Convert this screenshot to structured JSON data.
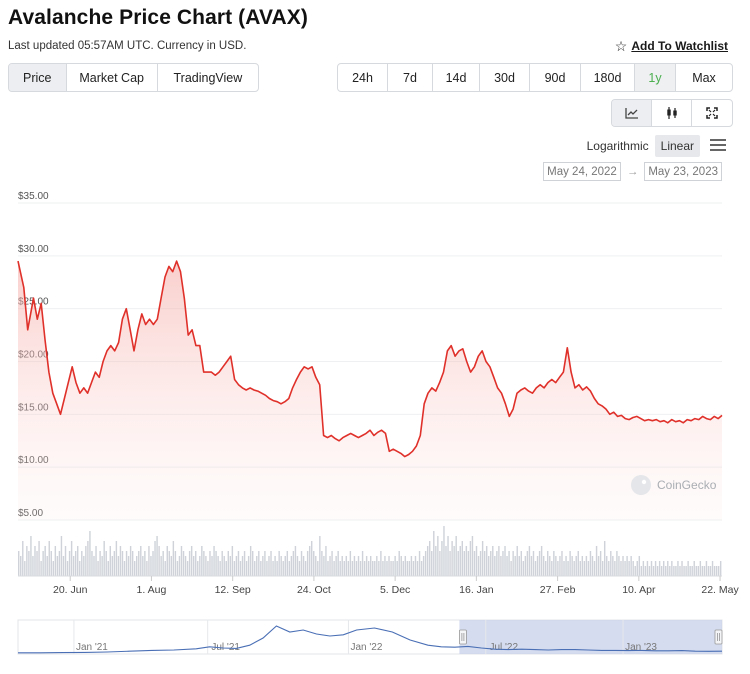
{
  "header": {
    "title": "Avalanche Price Chart (AVAX)",
    "subtitle": "Last updated 05:57AM UTC. Currency in USD.",
    "watchlist_label": "Add To Watchlist"
  },
  "tabs_left": [
    {
      "label": "Price",
      "active": true
    },
    {
      "label": "Market Cap",
      "active": false
    },
    {
      "label": "TradingView",
      "active": false
    }
  ],
  "tabs_range": [
    {
      "label": "24h",
      "active": false
    },
    {
      "label": "7d",
      "active": false
    },
    {
      "label": "14d",
      "active": false
    },
    {
      "label": "30d",
      "active": false
    },
    {
      "label": "90d",
      "active": false
    },
    {
      "label": "180d",
      "active": false
    },
    {
      "label": "1y",
      "active": true
    },
    {
      "label": "Max",
      "active": false
    }
  ],
  "chart_types": [
    {
      "icon": "line-chart-icon",
      "active": true
    },
    {
      "icon": "candlestick-icon",
      "active": false
    },
    {
      "icon": "fullscreen-icon",
      "active": false
    }
  ],
  "scale": {
    "logarithmic": "Logarithmic",
    "linear": "Linear",
    "active": "Linear"
  },
  "date_range": {
    "from": "May 24, 2022",
    "arrow": "→",
    "to": "May 23, 2023"
  },
  "watermark": "CoinGecko",
  "colors": {
    "line": "#e0302a",
    "volume": "#cfd3d9",
    "navigator_line": "#4a6fb5",
    "navigator_selection": "#c7d0ea"
  },
  "chart_data": {
    "type": "area",
    "ylim": [
      5,
      35
    ],
    "y_ticks": [
      "$35.00",
      "$30.00",
      "$25.00",
      "$20.00",
      "$15.00",
      "$10.00",
      "$5.00"
    ],
    "y_tick_values": [
      35,
      30,
      25,
      20,
      15,
      10,
      5
    ],
    "x_ticks": [
      "20. Jun",
      "1. Aug",
      "12. Sep",
      "24. Oct",
      "5. Dec",
      "16. Jan",
      "27. Feb",
      "10. Apr",
      "22. May"
    ],
    "x_tick_days": [
      27,
      69,
      111,
      153,
      195,
      237,
      279,
      321,
      363
    ],
    "series": [
      {
        "points": [
          [
            0,
            29.5
          ],
          [
            3,
            27
          ],
          [
            5,
            23
          ],
          [
            8,
            26
          ],
          [
            10,
            24
          ],
          [
            12,
            25.5
          ],
          [
            14,
            22
          ],
          [
            16,
            19
          ],
          [
            18,
            17
          ],
          [
            20,
            16
          ],
          [
            22,
            15
          ],
          [
            24,
            16.5
          ],
          [
            26,
            18
          ],
          [
            28,
            19.5
          ],
          [
            30,
            18
          ],
          [
            32,
            17
          ],
          [
            34,
            17.5
          ],
          [
            36,
            17
          ],
          [
            38,
            18
          ],
          [
            40,
            19
          ],
          [
            42,
            18.5
          ],
          [
            44,
            20
          ],
          [
            46,
            21
          ],
          [
            48,
            21.5
          ],
          [
            50,
            21
          ],
          [
            52,
            21.8
          ],
          [
            54,
            24
          ],
          [
            56,
            25
          ],
          [
            58,
            23
          ],
          [
            60,
            21
          ],
          [
            62,
            23
          ],
          [
            64,
            24.5
          ],
          [
            66,
            23.5
          ],
          [
            68,
            24
          ],
          [
            70,
            23.5
          ],
          [
            72,
            24
          ],
          [
            74,
            26
          ],
          [
            76,
            28
          ],
          [
            78,
            29
          ],
          [
            80,
            28.5
          ],
          [
            82,
            29.5
          ],
          [
            84,
            28.5
          ],
          [
            86,
            26
          ],
          [
            88,
            22.5
          ],
          [
            90,
            23
          ],
          [
            92,
            21.5
          ],
          [
            94,
            21.5
          ],
          [
            96,
            19
          ],
          [
            98,
            19
          ],
          [
            100,
            19
          ],
          [
            102,
            18.7
          ],
          [
            104,
            19
          ],
          [
            106,
            19.5
          ],
          [
            108,
            20
          ],
          [
            110,
            20.5
          ],
          [
            112,
            18.3
          ],
          [
            114,
            17.8
          ],
          [
            116,
            17.5
          ],
          [
            118,
            17.3
          ],
          [
            120,
            17.5
          ],
          [
            122,
            17.3
          ],
          [
            124,
            17.2
          ],
          [
            126,
            17
          ],
          [
            128,
            16.8
          ],
          [
            130,
            16.5
          ],
          [
            132,
            16.3
          ],
          [
            134,
            16.2
          ],
          [
            136,
            16
          ],
          [
            138,
            16.2
          ],
          [
            140,
            16.5
          ],
          [
            142,
            17.5
          ],
          [
            144,
            18.3
          ],
          [
            146,
            19
          ],
          [
            148,
            19.5
          ],
          [
            150,
            19.3
          ],
          [
            152,
            19.5
          ],
          [
            154,
            18.5
          ],
          [
            156,
            17.8
          ],
          [
            158,
            13
          ],
          [
            160,
            12.8
          ],
          [
            162,
            13
          ],
          [
            164,
            12.7
          ],
          [
            166,
            12.5
          ],
          [
            168,
            12.8
          ],
          [
            170,
            13
          ],
          [
            172,
            13.2
          ],
          [
            174,
            13
          ],
          [
            176,
            12.8
          ],
          [
            178,
            13
          ],
          [
            180,
            13.2
          ],
          [
            182,
            13.5
          ],
          [
            184,
            13
          ],
          [
            186,
            13.3
          ],
          [
            188,
            13.5
          ],
          [
            190,
            13.2
          ],
          [
            192,
            11.5
          ],
          [
            194,
            11.7
          ],
          [
            196,
            11.5
          ],
          [
            198,
            11.3
          ],
          [
            200,
            11
          ],
          [
            202,
            11.2
          ],
          [
            204,
            11.5
          ],
          [
            206,
            12
          ],
          [
            208,
            13
          ],
          [
            210,
            16
          ],
          [
            212,
            17
          ],
          [
            214,
            17.5
          ],
          [
            216,
            17.2
          ],
          [
            218,
            18
          ],
          [
            220,
            19
          ],
          [
            222,
            21
          ],
          [
            224,
            21.5
          ],
          [
            226,
            20.5
          ],
          [
            228,
            21
          ],
          [
            230,
            21.2
          ],
          [
            232,
            20
          ],
          [
            234,
            19
          ],
          [
            236,
            19.5
          ],
          [
            238,
            20.5
          ],
          [
            240,
            21
          ],
          [
            242,
            20
          ],
          [
            244,
            19.5
          ],
          [
            246,
            18.5
          ],
          [
            248,
            17.5
          ],
          [
            250,
            17
          ],
          [
            252,
            16
          ],
          [
            254,
            14.8
          ],
          [
            256,
            15.5
          ],
          [
            258,
            17
          ],
          [
            260,
            17.3
          ],
          [
            262,
            17.5
          ],
          [
            264,
            17.2
          ],
          [
            266,
            17
          ],
          [
            268,
            17.5
          ],
          [
            270,
            17.8
          ],
          [
            272,
            17.5
          ],
          [
            274,
            18
          ],
          [
            276,
            18.3
          ],
          [
            278,
            18
          ],
          [
            280,
            18.5
          ],
          [
            282,
            19
          ],
          [
            284,
            21.3
          ],
          [
            286,
            19
          ],
          [
            288,
            17.5
          ],
          [
            290,
            17.8
          ],
          [
            292,
            17.3
          ],
          [
            294,
            17.6
          ],
          [
            296,
            17.2
          ],
          [
            298,
            16.5
          ],
          [
            300,
            16
          ],
          [
            302,
            15.8
          ],
          [
            304,
            15.5
          ],
          [
            306,
            15
          ],
          [
            308,
            15.2
          ],
          [
            310,
            14.8
          ],
          [
            312,
            14.9
          ],
          [
            314,
            14.6
          ],
          [
            316,
            14.5
          ],
          [
            318,
            14.7
          ],
          [
            320,
            14.8
          ],
          [
            322,
            14.6
          ],
          [
            324,
            14.4
          ],
          [
            326,
            14.5
          ],
          [
            328,
            14.4
          ],
          [
            330,
            14.5
          ],
          [
            332,
            14.3
          ],
          [
            334,
            14.4
          ],
          [
            336,
            14.2
          ],
          [
            338,
            14.5
          ],
          [
            340,
            14.3
          ],
          [
            342,
            14.4
          ],
          [
            344,
            14.2
          ],
          [
            346,
            14.5
          ],
          [
            348,
            14.4
          ],
          [
            350,
            14.6
          ],
          [
            352,
            14.5
          ],
          [
            354,
            14.8
          ],
          [
            356,
            14.6
          ],
          [
            358,
            14.5
          ],
          [
            360,
            14.8
          ],
          [
            362,
            14.6
          ],
          [
            364,
            14.9
          ]
        ]
      }
    ],
    "volume": [
      0.5,
      0.4,
      0.7,
      0.3,
      0.6,
      0.5,
      0.8,
      0.4,
      0.6,
      0.5,
      0.7,
      0.3,
      0.5,
      0.6,
      0.4,
      0.7,
      0.5,
      0.3,
      0.6,
      0.4,
      0.5,
      0.8,
      0.4,
      0.6,
      0.3,
      0.5,
      0.7,
      0.4,
      0.5,
      0.6,
      0.3,
      0.5,
      0.4,
      0.6,
      0.7,
      0.9,
      0.5,
      0.4,
      0.6,
      0.3,
      0.5,
      0.4,
      0.7,
      0.5,
      0.3,
      0.6,
      0.4,
      0.5,
      0.7,
      0.4,
      0.6,
      0.5,
      0.3,
      0.5,
      0.4,
      0.6,
      0.5,
      0.3,
      0.4,
      0.5,
      0.6,
      0.4,
      0.5,
      0.3,
      0.6,
      0.4,
      0.5,
      0.7,
      0.8,
      0.6,
      0.4,
      0.5,
      0.3,
      0.6,
      0.5,
      0.4,
      0.7,
      0.5,
      0.3,
      0.4,
      0.6,
      0.5,
      0.4,
      0.3,
      0.5,
      0.6,
      0.4,
      0.5,
      0.3,
      0.4,
      0.6,
      0.5,
      0.4,
      0.3,
      0.5,
      0.4,
      0.6,
      0.5,
      0.4,
      0.3,
      0.5,
      0.4,
      0.3,
      0.5,
      0.4,
      0.6,
      0.3,
      0.4,
      0.5,
      0.3,
      0.4,
      0.5,
      0.3,
      0.4,
      0.6,
      0.5,
      0.3,
      0.4,
      0.5,
      0.3,
      0.4,
      0.5,
      0.3,
      0.4,
      0.5,
      0.3,
      0.4,
      0.3,
      0.5,
      0.4,
      0.3,
      0.4,
      0.5,
      0.3,
      0.4,
      0.5,
      0.6,
      0.4,
      0.3,
      0.5,
      0.4,
      0.3,
      0.5,
      0.6,
      0.7,
      0.5,
      0.4,
      0.3,
      0.8,
      0.5,
      0.4,
      0.6,
      0.3,
      0.4,
      0.5,
      0.3,
      0.4,
      0.5,
      0.3,
      0.4,
      0.3,
      0.4,
      0.3,
      0.5,
      0.3,
      0.4,
      0.3,
      0.4,
      0.3,
      0.5,
      0.3,
      0.4,
      0.3,
      0.4,
      0.3,
      0.3,
      0.4,
      0.3,
      0.5,
      0.3,
      0.4,
      0.3,
      0.4,
      0.3,
      0.3,
      0.4,
      0.3,
      0.5,
      0.4,
      0.3,
      0.4,
      0.3,
      0.3,
      0.4,
      0.3,
      0.4,
      0.3,
      0.5,
      0.3,
      0.4,
      0.5,
      0.6,
      0.7,
      0.5,
      0.9,
      0.6,
      0.8,
      0.5,
      0.7,
      1.0,
      0.6,
      0.8,
      0.5,
      0.7,
      0.6,
      0.8,
      0.5,
      0.6,
      0.7,
      0.5,
      0.6,
      0.5,
      0.7,
      0.8,
      0.5,
      0.6,
      0.4,
      0.5,
      0.7,
      0.5,
      0.6,
      0.4,
      0.5,
      0.6,
      0.4,
      0.5,
      0.6,
      0.4,
      0.5,
      0.6,
      0.4,
      0.5,
      0.3,
      0.5,
      0.4,
      0.6,
      0.4,
      0.5,
      0.3,
      0.4,
      0.5,
      0.6,
      0.4,
      0.5,
      0.3,
      0.4,
      0.5,
      0.6,
      0.4,
      0.3,
      0.5,
      0.4,
      0.3,
      0.5,
      0.4,
      0.3,
      0.4,
      0.5,
      0.3,
      0.4,
      0.3,
      0.5,
      0.4,
      0.3,
      0.4,
      0.5,
      0.3,
      0.4,
      0.3,
      0.4,
      0.3,
      0.5,
      0.4,
      0.3,
      0.6,
      0.4,
      0.5,
      0.3,
      0.7,
      0.4,
      0.3,
      0.5,
      0.4,
      0.3,
      0.5,
      0.4,
      0.3,
      0.4,
      0.3,
      0.4,
      0.3,
      0.4,
      0.3,
      0.2,
      0.3,
      0.4,
      0.2,
      0.3,
      0.2,
      0.3,
      0.2,
      0.3,
      0.2,
      0.3,
      0.2,
      0.3,
      0.2,
      0.3,
      0.2,
      0.3,
      0.2,
      0.3,
      0.2,
      0.2,
      0.3,
      0.2,
      0.3,
      0.2,
      0.2,
      0.3,
      0.2,
      0.2,
      0.3,
      0.2,
      0.2,
      0.3,
      0.2,
      0.2,
      0.3,
      0.2,
      0.2,
      0.3,
      0.2,
      0.2,
      0.2,
      0.3
    ],
    "navigator": {
      "x_ticks": [
        "Jan '21",
        "Jul '21",
        "Jan '22",
        "Jul '22",
        "Jan '23"
      ],
      "points": [
        [
          0,
          3
        ],
        [
          5,
          3
        ],
        [
          10,
          3.5
        ],
        [
          15,
          4
        ],
        [
          20,
          5
        ],
        [
          25,
          7
        ],
        [
          30,
          9
        ],
        [
          35,
          10
        ],
        [
          40,
          13
        ],
        [
          43,
          18
        ],
        [
          46,
          15
        ],
        [
          49,
          14
        ],
        [
          52,
          22
        ],
        [
          55,
          40
        ],
        [
          58,
          70
        ],
        [
          61,
          55
        ],
        [
          64,
          60
        ],
        [
          67,
          50
        ],
        [
          70,
          45
        ],
        [
          73,
          48
        ],
        [
          76,
          60
        ],
        [
          80,
          65
        ],
        [
          84,
          55
        ],
        [
          88,
          35
        ],
        [
          92,
          22
        ],
        [
          95,
          18
        ],
        [
          98,
          17
        ],
        [
          101,
          19
        ],
        [
          104,
          15
        ],
        [
          107,
          12
        ],
        [
          110,
          11
        ],
        [
          113,
          12
        ],
        [
          116,
          11
        ],
        [
          119,
          10
        ],
        [
          122,
          11
        ],
        [
          125,
          11
        ],
        [
          128,
          10
        ],
        [
          131,
          9
        ],
        [
          134,
          9
        ],
        [
          137,
          8.5
        ],
        [
          140,
          9
        ],
        [
          143,
          8
        ],
        [
          146,
          8
        ],
        [
          149,
          8.5
        ],
        [
          152,
          7
        ],
        [
          155,
          6.8
        ],
        [
          158,
          7
        ]
      ],
      "selection": [
        0.627,
        1.0
      ]
    }
  }
}
